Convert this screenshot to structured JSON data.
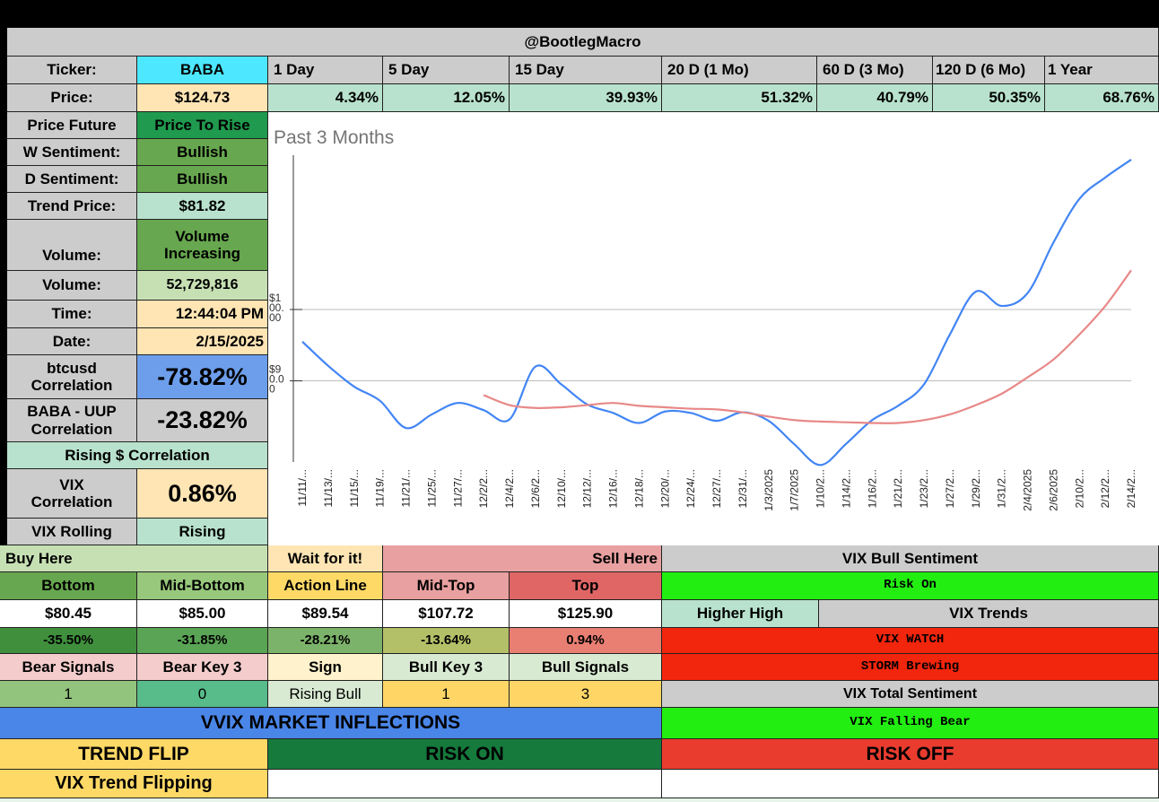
{
  "header": {
    "handle": "@BootlegMacro"
  },
  "ticker": {
    "label": "Ticker:",
    "value": "BABA"
  },
  "periods": [
    {
      "label": "1 Day",
      "change": "4.34%"
    },
    {
      "label": "5 Day",
      "change": "12.05%"
    },
    {
      "label": "15 Day",
      "change": "39.93%"
    },
    {
      "label": "20 D (1 Mo)",
      "change": "51.32%"
    },
    {
      "label": "60 D (3 Mo)",
      "change": "40.79%"
    },
    {
      "label": "120 D (6 Mo)",
      "change": "50.35%"
    },
    {
      "label": "1 Year",
      "change": "68.76%"
    }
  ],
  "price": {
    "label": "Price:",
    "value": "$124.73"
  },
  "left_panel": {
    "price_future": {
      "label": "Price Future",
      "value": "Price To Rise"
    },
    "w_sentiment": {
      "label": "W Sentiment:",
      "value": "Bullish"
    },
    "d_sentiment": {
      "label": "D Sentiment:",
      "value": "Bullish"
    },
    "trend_price": {
      "label": "Trend Price:",
      "value": "$81.82"
    },
    "volume_trend": {
      "label": "Volume:",
      "value": "Volume Increasing"
    },
    "volume": {
      "label": "Volume:",
      "value": "52,729,816"
    },
    "time": {
      "label": "Time:",
      "value": "12:44:04 PM"
    },
    "date": {
      "label": "Date:",
      "value": "2/15/2025"
    },
    "btc_corr": {
      "label": "btcusd Correlation",
      "value": "-78.82%"
    },
    "uup_corr": {
      "label": "BABA - UUP Correlation",
      "value": "-23.82%"
    },
    "rising_corr": {
      "label": "Rising $ Correlation"
    },
    "vix_corr": {
      "label": "VIX Correlation",
      "value": "0.86%"
    },
    "vix_rolling": {
      "label": "VIX Rolling",
      "value": "Rising"
    }
  },
  "chart_data": {
    "type": "line",
    "title": "Past 3 Months",
    "y_tick_labels": [
      "$100.00",
      "$90.00"
    ],
    "ylim": [
      78,
      122
    ],
    "x": [
      "11/11/2024",
      "11/13/2024",
      "11/15/2024",
      "11/19/2024",
      "11/21/2024",
      "11/25/2024",
      "11/27/2024",
      "12/2/2024",
      "12/4/2024",
      "12/6/2024",
      "12/10/2024",
      "12/12/2024",
      "12/16/2024",
      "12/18/2024",
      "12/20/2024",
      "12/24/2024",
      "12/27/2024",
      "12/31/2024",
      "1/3/2025",
      "1/7/2025",
      "1/10/2025",
      "1/14/2025",
      "1/16/2025",
      "1/21/2025",
      "1/23/2025",
      "1/27/2025",
      "1/29/2025",
      "1/31/2025",
      "2/4/2025",
      "2/6/2025",
      "2/10/2025",
      "2/12/2025",
      "2/14/2025"
    ],
    "x_tick_labels": [
      "11/11/...",
      "11/13/...",
      "11/15/...",
      "11/19/...",
      "11/21/...",
      "11/25/...",
      "11/27/...",
      "12/2/2...",
      "12/4/2...",
      "12/6/2...",
      "12/10/...",
      "12/12/...",
      "12/16/...",
      "12/18/...",
      "12/20/...",
      "12/24/...",
      "12/27/...",
      "12/31/...",
      "1/3/2025",
      "1/7/2025",
      "1/10/2...",
      "1/14/2...",
      "1/16/2...",
      "1/21/2...",
      "1/23/2...",
      "1/27/2...",
      "1/29/2...",
      "1/31/2...",
      "2/4/2025",
      "2/6/2025",
      "2/10/2...",
      "2/12/2...",
      "2/14/2..."
    ],
    "series": [
      {
        "name": "Price",
        "color": "#4285f4",
        "values": [
          95.5,
          92.1,
          89.2,
          87.2,
          83.4,
          85.3,
          86.9,
          85.9,
          84.6,
          92.0,
          89.5,
          86.7,
          85.5,
          84.1,
          85.7,
          85.5,
          84.4,
          85.6,
          84.4,
          81.1,
          78.2,
          81.2,
          84.5,
          86.5,
          89.5,
          96.5,
          102.5,
          100.5,
          102.3,
          109.4,
          115.5,
          118.5,
          121.0
        ]
      },
      {
        "name": "Trend",
        "color": "#e88888",
        "values": [
          null,
          null,
          null,
          null,
          null,
          null,
          null,
          88.0,
          86.6,
          86.2,
          86.3,
          86.6,
          86.9,
          86.5,
          86.3,
          86.1,
          86.0,
          85.6,
          85.0,
          84.5,
          84.3,
          84.2,
          84.1,
          84.1,
          84.5,
          85.3,
          86.6,
          88.2,
          90.5,
          93.0,
          96.5,
          100.5,
          105.5
        ]
      }
    ]
  },
  "zones": {
    "buy_here": "Buy Here",
    "wait": "Wait for it!",
    "sell_here": "Sell Here",
    "levels": [
      {
        "label": "Bottom",
        "price": "$80.45",
        "pct": "-35.50%"
      },
      {
        "label": "Mid-Bottom",
        "price": "$85.00",
        "pct": "-31.85%"
      },
      {
        "label": "Action Line",
        "price": "$89.54",
        "pct": "-28.21%"
      },
      {
        "label": "Mid-Top",
        "price": "$107.72",
        "pct": "-13.64%"
      },
      {
        "label": "Top",
        "price": "$125.90",
        "pct": "0.94%"
      }
    ]
  },
  "signals": {
    "labels": [
      "Bear Signals",
      "Bear Key 3",
      "Sign",
      "Bull Key 3",
      "Bull Signals"
    ],
    "values": [
      "1",
      "0",
      "Rising Bull",
      "1",
      "3"
    ]
  },
  "vix": {
    "bull_sentiment_label": "VIX Bull Sentiment",
    "risk_state": "Risk On",
    "higher_high": "Higher High",
    "trends_label": "VIX Trends",
    "watch": "VIX WATCH",
    "storm": "STORM Brewing",
    "total_label": "VIX Total Sentiment",
    "total_value": "VIX Falling Bear"
  },
  "vvix": {
    "title": "VVIX MARKET INFLECTIONS",
    "trend_flip": "TREND FLIP",
    "risk_on": "RISK ON",
    "risk_off": "RISK OFF",
    "vix_trend": "VIX Trend Flipping"
  },
  "colors": {
    "grey": "#cccccc",
    "cyan": "#4de7ff",
    "cream": "#ffe5b4",
    "mint": "#b8e2cd",
    "green": "#67a74f",
    "light_green": "#c6e0b4",
    "blue": "#6d9eeb",
    "bright_green": "#22ee11",
    "red": "#f2250d",
    "vvix_blue": "#4a86e8",
    "dark_green": "#157a3c",
    "risk_red": "#e93c2f",
    "yellow": "#ffd966"
  }
}
